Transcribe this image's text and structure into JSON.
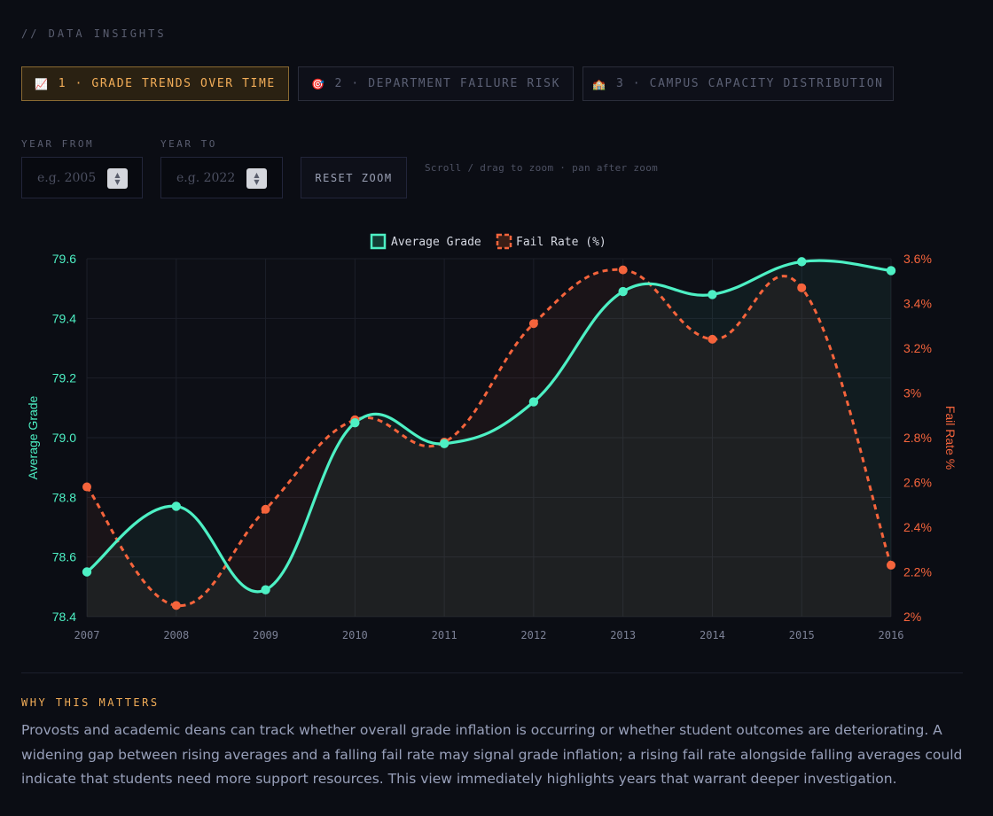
{
  "header": {
    "section_label": "// DATA INSIGHTS"
  },
  "tabs": [
    {
      "icon": "📈",
      "icon_name": "chart-increasing-icon",
      "label": "1 · GRADE TRENDS OVER TIME",
      "active": true
    },
    {
      "icon": "🎯",
      "icon_name": "target-icon",
      "label": "2 · DEPARTMENT FAILURE RISK",
      "active": false
    },
    {
      "icon": "🏫",
      "icon_name": "school-icon",
      "label": "3 · CAMPUS CAPACITY DISTRIBUTION",
      "active": false
    }
  ],
  "filters": {
    "year_from": {
      "label": "YEAR FROM",
      "placeholder": "e.g. 2005",
      "value": ""
    },
    "year_to": {
      "label": "YEAR TO",
      "placeholder": "e.g. 2022",
      "value": ""
    },
    "reset_label": "RESET ZOOM",
    "hint": "Scroll / drag to zoom · pan after zoom"
  },
  "colors": {
    "grade": "#4df0c4",
    "fail": "#f5643c",
    "accent": "#f2ad58"
  },
  "chart_data": {
    "type": "line",
    "x": [
      "2007",
      "2008",
      "2009",
      "2010",
      "2011",
      "2012",
      "2013",
      "2014",
      "2015",
      "2016"
    ],
    "series": [
      {
        "name": "Average Grade",
        "axis": "left",
        "color": "#4df0c4",
        "dashed": false,
        "values": [
          78.55,
          78.77,
          78.49,
          79.05,
          78.98,
          79.12,
          79.49,
          79.48,
          79.59,
          79.56
        ]
      },
      {
        "name": "Fail Rate (%)",
        "axis": "right",
        "color": "#f5643c",
        "dashed": true,
        "values": [
          2.58,
          2.05,
          2.48,
          2.88,
          2.78,
          3.31,
          3.55,
          3.24,
          3.47,
          2.23
        ]
      }
    ],
    "y_left": {
      "label": "Average Grade",
      "min": 78.4,
      "max": 79.6,
      "ticks": [
        "78.4",
        "78.6",
        "78.8",
        "79.0",
        "79.2",
        "79.4",
        "79.6"
      ]
    },
    "y_right": {
      "label": "Fail Rate %",
      "min": 2,
      "max": 3.6,
      "ticks": [
        "2%",
        "2.2%",
        "2.4%",
        "2.6%",
        "2.8%",
        "3%",
        "3.2%",
        "3.4%",
        "3.6%"
      ]
    },
    "legend_position": "top-center",
    "grid": true
  },
  "why": {
    "title": "WHY THIS MATTERS",
    "body": "Provosts and academic deans can track whether overall grade inflation is occurring or whether student outcomes are deteriorating. A widening gap between rising averages and a falling fail rate may signal grade inflation; a rising fail rate alongside falling averages could indicate that students need more support resources. This view immediately highlights years that warrant deeper investigation."
  }
}
